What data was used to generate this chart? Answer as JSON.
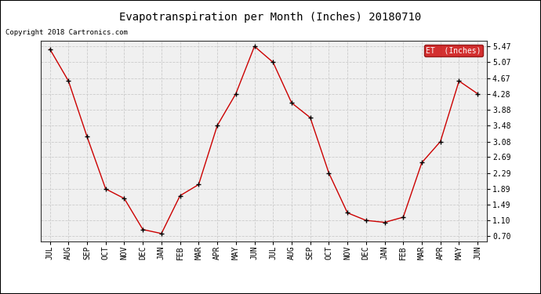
{
  "title": "Evapotranspiration per Month (Inches) 20180710",
  "copyright": "Copyright 2018 Cartronics.com",
  "legend_label": "ET  (Inches)",
  "months": [
    "JUL",
    "AUG",
    "SEP",
    "OCT",
    "NOV",
    "DEC",
    "JAN",
    "FEB",
    "MAR",
    "APR",
    "MAY",
    "JUN",
    "JUL",
    "AUG",
    "SEP",
    "OCT",
    "NOV",
    "DEC",
    "JAN",
    "FEB",
    "MAR",
    "APR",
    "MAY",
    "JUN"
  ],
  "values": [
    5.4,
    4.6,
    3.2,
    1.89,
    1.65,
    0.87,
    0.77,
    1.72,
    2.0,
    3.48,
    4.28,
    5.47,
    5.07,
    4.05,
    3.68,
    2.29,
    1.29,
    1.1,
    1.05,
    1.18,
    2.55,
    3.08,
    4.6,
    4.28
  ],
  "yticks": [
    0.7,
    1.1,
    1.49,
    1.89,
    2.29,
    2.69,
    3.08,
    3.48,
    3.88,
    4.28,
    4.67,
    5.07,
    5.47
  ],
  "ymin": 0.58,
  "ymax": 5.6,
  "line_color": "#cc0000",
  "marker_color": "#000000",
  "background_color": "#ffffff",
  "plot_bg_color": "#f0f0f0",
  "grid_color": "#cccccc",
  "legend_bg": "#cc0000",
  "legend_fg": "#ffffff",
  "title_fontsize": 10,
  "tick_fontsize": 7,
  "copyright_fontsize": 6.5
}
